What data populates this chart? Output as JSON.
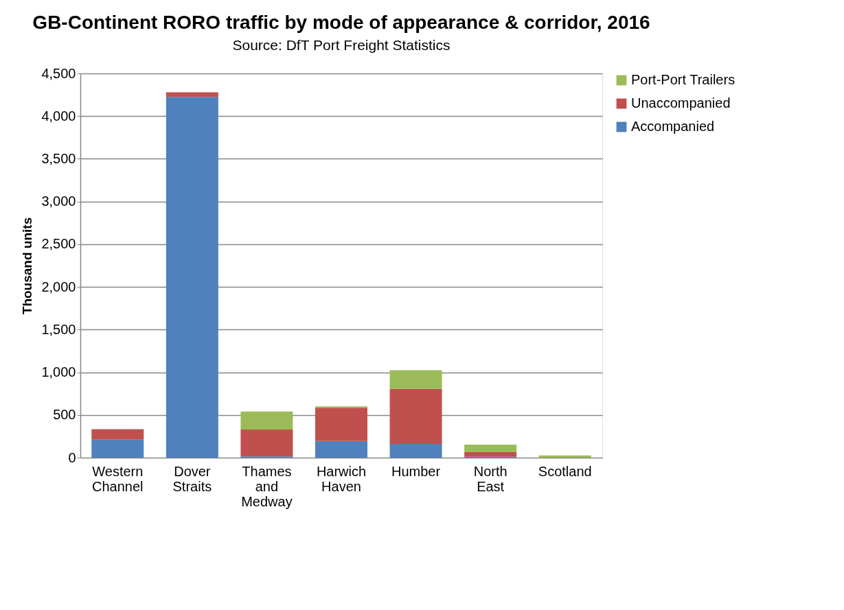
{
  "chart_data": {
    "type": "bar",
    "title": "GB-Continent RORO traffic by mode of appearance & corridor, 2016",
    "subtitle": "Source:  DfT Port Freight Statistics",
    "ylabel": "Thousand units",
    "categories": [
      "Western Channel",
      "Dover Straits",
      "Thames and Medway",
      "Harwich Haven",
      "Humber",
      "North East",
      "Scotland"
    ],
    "stacked": true,
    "series": [
      {
        "name": "Accompanied",
        "color": "#4f81bd",
        "values": [
          210,
          4225,
          15,
          195,
          160,
          10,
          0
        ]
      },
      {
        "name": "Unaccompanied",
        "color": "#c0504d",
        "values": [
          123,
          55,
          315,
          390,
          645,
          55,
          0
        ]
      },
      {
        "name": "Port-Port Trailers",
        "color": "#9bbb59",
        "values": [
          0,
          0,
          210,
          15,
          220,
          87,
          26
        ]
      }
    ],
    "ylim": [
      0,
      4500
    ],
    "yticks": [
      0,
      500,
      {
        "value": 1000,
        "label": "1,000"
      },
      {
        "value": 1500,
        "label": "1,500"
      },
      {
        "value": 2000,
        "label": "2,000"
      },
      {
        "value": 2500,
        "label": "2,500"
      },
      {
        "value": 3000,
        "label": "3,000"
      },
      {
        "value": 3500,
        "label": "3,500"
      },
      {
        "value": 4000,
        "label": "4,000"
      },
      {
        "value": 4500,
        "label": "4,500"
      }
    ],
    "grid": "y",
    "legend": "right"
  }
}
